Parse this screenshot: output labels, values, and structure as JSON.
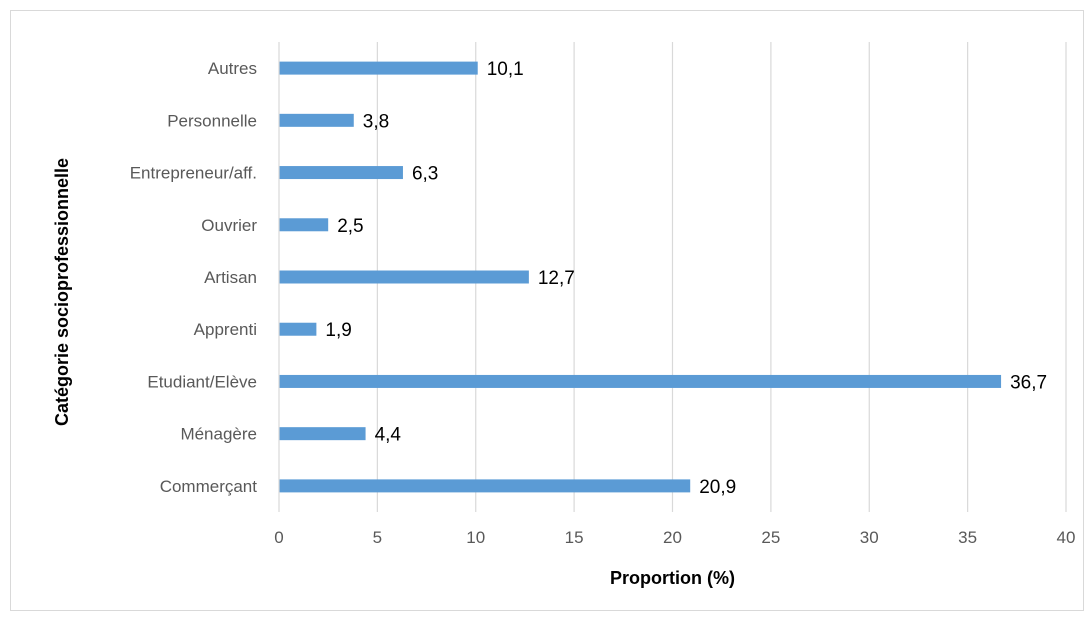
{
  "chart_data": {
    "type": "bar",
    "orientation": "horizontal",
    "title": "",
    "xlabel": "Proportion (%)",
    "ylabel": "Catégorie socioprofessionnelle",
    "categories": [
      "Commerçant",
      "Ménagère",
      "Etudiant/Elève",
      "Apprenti",
      "Artisan",
      "Ouvrier",
      "Entrepreneur/aff.",
      "Personnelle",
      "Autres"
    ],
    "values": [
      20.9,
      4.4,
      36.7,
      1.9,
      12.7,
      2.5,
      6.3,
      3.8,
      10.1
    ],
    "value_labels": [
      "20,9",
      "4,4",
      "36,7",
      "1,9",
      "12,7",
      "2,5",
      "6,3",
      "3,8",
      "10,1"
    ],
    "xlim": [
      0,
      40
    ],
    "xticks": [
      0,
      5,
      10,
      15,
      20,
      25,
      30,
      35,
      40
    ],
    "grid": "vertical",
    "bar_color": "#5b9bd5",
    "grid_color": "#d9d9d9"
  }
}
